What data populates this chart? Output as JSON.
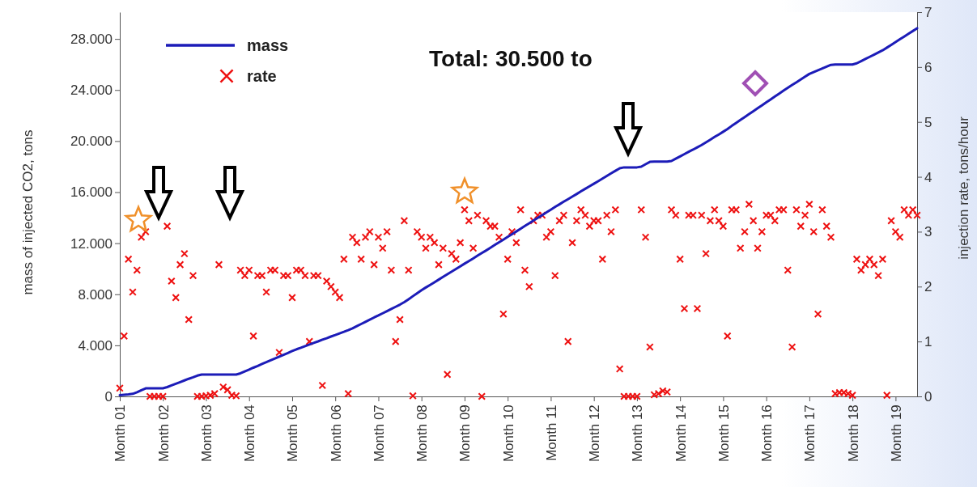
{
  "chart_data": {
    "type": "scatter",
    "ylabel": "mass of injected CO2, tons",
    "y2label": "injection rate, tons/hour",
    "annotations": [
      "Total: 30.500 to"
    ],
    "categories": [
      "Month 01",
      null,
      null,
      null,
      null,
      null,
      null,
      null,
      null,
      null,
      "Month 02",
      null,
      null,
      null,
      null,
      null,
      null,
      null,
      null,
      null,
      "Month 03",
      null,
      null,
      null,
      null,
      null,
      null,
      null,
      null,
      null,
      "Month 04",
      null,
      null,
      null,
      null,
      null,
      null,
      null,
      null,
      null,
      "Month 05",
      null,
      null,
      null,
      null,
      null,
      null,
      null,
      null,
      null,
      "Month 06",
      null,
      null,
      null,
      null,
      null,
      null,
      null,
      null,
      null,
      "Month 07",
      null,
      null,
      null,
      null,
      null,
      null,
      null,
      null,
      null,
      "Month 08",
      null,
      null,
      null,
      null,
      null,
      null,
      null,
      null,
      null,
      "Month 09",
      null,
      null,
      null,
      null,
      null,
      null,
      null,
      null,
      null,
      "Month 10",
      null,
      null,
      null,
      null,
      null,
      null,
      null,
      null,
      null,
      "Month 11",
      null,
      null,
      null,
      null,
      null,
      null,
      null,
      null,
      null,
      "Month 12",
      null,
      null,
      null,
      null,
      null,
      null,
      null,
      null,
      null,
      "Month 13",
      null,
      null,
      null,
      null,
      null,
      null,
      null,
      null,
      null,
      "Month 14",
      null,
      null,
      null,
      null,
      null,
      null,
      null,
      null,
      null,
      "Month 15",
      null,
      null,
      null,
      null,
      null,
      null,
      null,
      null,
      null,
      "Month 16",
      null,
      null,
      null,
      null,
      null,
      null,
      null,
      null,
      null,
      "Month 17",
      null,
      null,
      null,
      null,
      null,
      null,
      null,
      null,
      null,
      "Month 18",
      null,
      null,
      null,
      null,
      null,
      null,
      null,
      null,
      null,
      "Month 19",
      null,
      null,
      null,
      null,
      null
    ],
    "ylim": [
      0,
      30100
    ],
    "yticks": [
      {
        "value": 0,
        "label": "0"
      },
      {
        "value": 4000,
        "label": "4.000"
      },
      {
        "value": 8000,
        "label": "8.000"
      },
      {
        "value": 12000,
        "label": "12.000"
      },
      {
        "value": 16000,
        "label": "16.000"
      },
      {
        "value": 20000,
        "label": "20.000"
      },
      {
        "value": 24000,
        "label": "24.000"
      },
      {
        "value": 28000,
        "label": "28.000"
      }
    ],
    "y2lim": [
      0,
      7
    ],
    "y2ticks": [
      0,
      1,
      2,
      3,
      4,
      5,
      6,
      7
    ],
    "legend": "top left",
    "series": [
      {
        "name": "mass",
        "type": "line",
        "marker": "none",
        "line_style": "solid",
        "color": "#1c1cb8",
        "values": [
          100,
          130,
          160,
          200,
          320,
          480,
          630,
          630,
          630,
          630,
          630,
          730,
          860,
          990,
          1120,
          1250,
          1380,
          1500,
          1630,
          1710,
          1710,
          1710,
          1710,
          1710,
          1710,
          1710,
          1710,
          1710,
          1810,
          1960,
          2100,
          2250,
          2390,
          2540,
          2680,
          2830,
          2970,
          3120,
          3260,
          3400,
          3550,
          3690,
          3810,
          3940,
          4060,
          4190,
          4310,
          4440,
          4560,
          4690,
          4810,
          4940,
          5060,
          5190,
          5330,
          5500,
          5670,
          5840,
          6010,
          6180,
          6340,
          6510,
          6680,
          6850,
          7020,
          7190,
          7380,
          7610,
          7850,
          8080,
          8320,
          8530,
          8730,
          8940,
          9150,
          9360,
          9570,
          9770,
          9980,
          10190,
          10400,
          10600,
          10810,
          11020,
          11230,
          11430,
          11640,
          11860,
          12070,
          12280,
          12500,
          12710,
          12920,
          13140,
          13350,
          13560,
          13780,
          13990,
          14200,
          14410,
          14620,
          14840,
          15040,
          15250,
          15450,
          15650,
          15850,
          16060,
          16260,
          16460,
          16660,
          16860,
          17060,
          17270,
          17470,
          17670,
          17870,
          17940,
          17940,
          17940,
          17940,
          18000,
          18190,
          18370,
          18390,
          18390,
          18390,
          18390,
          18440,
          18620,
          18800,
          18980,
          19160,
          19330,
          19510,
          19690,
          19900,
          20110,
          20320,
          20520,
          20730,
          20940,
          21190,
          21420,
          21650,
          21880,
          22110,
          22340,
          22570,
          22800,
          23030,
          23260,
          23490,
          23720,
          23950,
          24170,
          24390,
          24600,
          24820,
          25040,
          25260,
          25410,
          25550,
          25690,
          25830,
          25970,
          26000,
          26000,
          26000,
          26000,
          26000,
          26090,
          26260,
          26430,
          26600,
          26770,
          26940,
          27110,
          27320,
          27540,
          27750,
          27970,
          28190,
          28410,
          28620,
          28840
        ]
      },
      {
        "name": "rate",
        "marker": "cross",
        "axis": "y2",
        "color": "#ee1111",
        "values": [
          0.15,
          1.1,
          2.5,
          1.9,
          2.3,
          2.9,
          3.0,
          0,
          0,
          0,
          0,
          3.1,
          2.1,
          1.8,
          2.4,
          2.6,
          1.4,
          2.2,
          0,
          0,
          0.01,
          0.02,
          0.05,
          2.4,
          0.17,
          0.12,
          0.02,
          0.01,
          2.3,
          2.2,
          2.3,
          1.1,
          2.2,
          2.2,
          1.9,
          2.3,
          2.3,
          0.8,
          2.2,
          2.2,
          1.8,
          2.3,
          2.3,
          2.2,
          1.0,
          2.2,
          2.2,
          0.2,
          2.1,
          2.0,
          1.9,
          1.8,
          2.5,
          0.05,
          2.9,
          2.8,
          2.5,
          2.9,
          3.0,
          2.4,
          2.9,
          2.7,
          3.0,
          2.3,
          1.0,
          1.4,
          3.2,
          2.3,
          0.01,
          3.0,
          2.9,
          2.7,
          2.9,
          2.8,
          2.4,
          2.7,
          0.4,
          2.6,
          2.5,
          2.8,
          3.4,
          3.2,
          2.7,
          3.3,
          0,
          3.2,
          3.1,
          3.1,
          2.9,
          1.5,
          2.5,
          3.0,
          2.8,
          3.4,
          2.3,
          2.0,
          3.2,
          3.3,
          3.3,
          2.9,
          3.0,
          2.2,
          3.2,
          3.3,
          1.0,
          2.8,
          3.2,
          3.4,
          3.3,
          3.1,
          3.2,
          3.2,
          2.5,
          3.3,
          3.0,
          3.4,
          0.5,
          0,
          0,
          0,
          0,
          3.4,
          2.9,
          0.9,
          0.03,
          0.05,
          0.1,
          0.08,
          3.4,
          3.3,
          2.5,
          1.6,
          3.3,
          3.3,
          1.6,
          3.3,
          2.6,
          3.2,
          3.4,
          3.2,
          3.1,
          1.1,
          3.4,
          3.4,
          2.7,
          3.0,
          3.5,
          3.2,
          2.7,
          3.0,
          3.3,
          3.3,
          3.2,
          3.4,
          3.4,
          2.3,
          0.9,
          3.4,
          3.1,
          3.3,
          3.5,
          3.0,
          1.5,
          3.4,
          3.1,
          2.9,
          0.05,
          0.07,
          0.07,
          0.05,
          0.02,
          2.5,
          2.3,
          2.4,
          2.5,
          2.4,
          2.2,
          2.5,
          0.02,
          3.2,
          3.0,
          2.9,
          3.4,
          3.3,
          3.4,
          3.3
        ]
      }
    ]
  }
}
